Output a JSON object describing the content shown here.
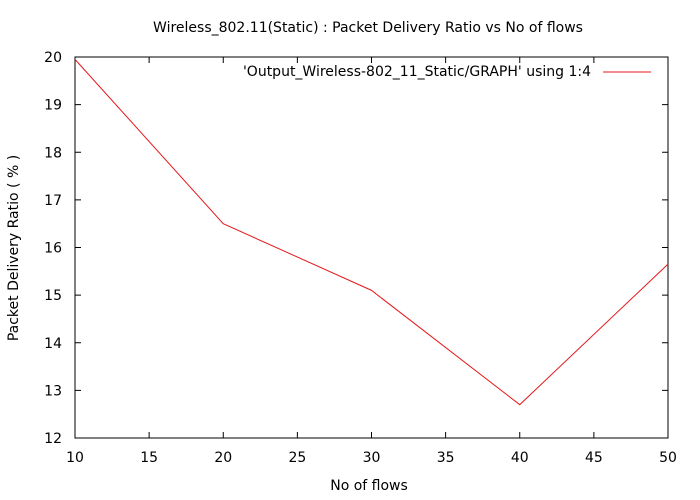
{
  "chart_data": {
    "type": "line",
    "title": "Wireless_802.11(Static) : Packet Delivery Ratio vs No of flows",
    "xlabel": "No of flows",
    "ylabel": "Packet Delivery Ratio ( % )",
    "xlim": [
      10,
      50
    ],
    "ylim": [
      12,
      20
    ],
    "xticks": [
      "10",
      "15",
      "20",
      "25",
      "30",
      "35",
      "40",
      "45",
      "50"
    ],
    "yticks": [
      "12",
      "13",
      "14",
      "15",
      "16",
      "17",
      "18",
      "19",
      "20"
    ],
    "grid": false,
    "legend_position": "top-right",
    "series": [
      {
        "name": "'Output_Wireless-802_11_Static/GRAPH' using 1:4",
        "color": "#e41a1c",
        "x": [
          10,
          20,
          30,
          40,
          50
        ],
        "y": [
          19.95,
          16.5,
          15.1,
          12.7,
          15.65
        ]
      }
    ]
  }
}
